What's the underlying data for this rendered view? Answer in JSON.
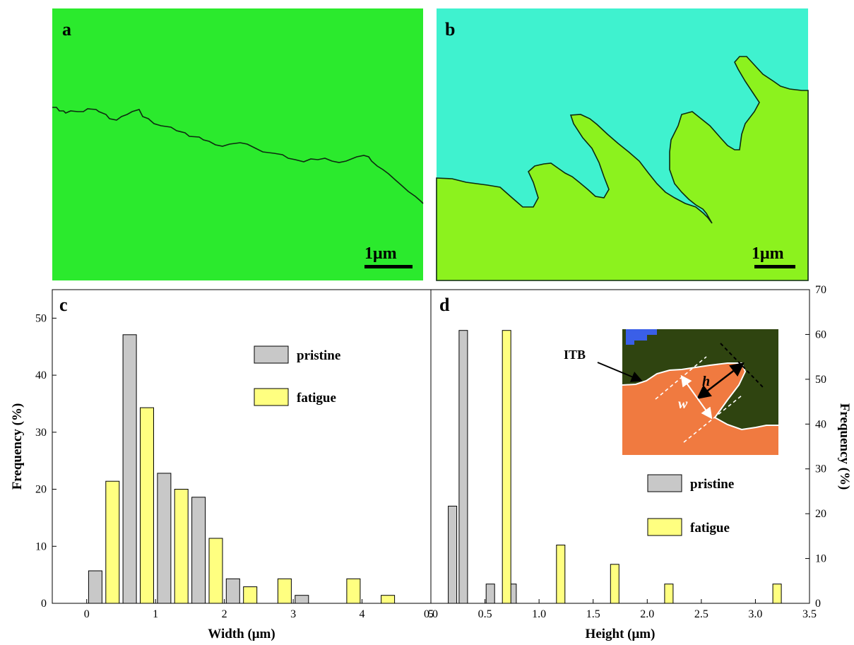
{
  "panels": {
    "a": {
      "letter": "a",
      "scale_label": "1μm",
      "background_color": "#2bea2d",
      "boundary_color": "#0d2a10"
    },
    "b": {
      "letter": "b",
      "scale_label": "1μm",
      "upper_color": "#3ff2cf",
      "lower_color": "#8cf21e",
      "boundary_color": "#0d2a10"
    },
    "c": {
      "letter": "c"
    },
    "d": {
      "letter": "d"
    }
  },
  "inset": {
    "itb_label": "ITB",
    "h_label": "h",
    "w_label": "w",
    "top_color": "#2f4410",
    "bottom_color": "#f07a40",
    "spot_color": "#3a5fe8"
  },
  "chart_data": [
    {
      "type": "bar",
      "panel": "c",
      "xlabel": "Width (μm)",
      "ylabel": "Frequency (%)",
      "xlim": [
        -0.5,
        5
      ],
      "ylim": [
        0,
        55
      ],
      "xticks": [
        0,
        1,
        2,
        3,
        4,
        5
      ],
      "yticks": [
        0,
        10,
        20,
        30,
        40,
        50
      ],
      "grid": false,
      "legend_position": "upper-middle",
      "series": [
        {
          "name": "pristine",
          "color": "#c8c8c8",
          "x": [
            0.125,
            0.625,
            1.125,
            1.625,
            2.125,
            3.125
          ],
          "values": [
            5.7,
            47.1,
            22.8,
            18.6,
            4.3,
            1.4
          ]
        },
        {
          "name": "fatigue",
          "color": "#ffff80",
          "x": [
            0.375,
            0.875,
            1.375,
            1.875,
            2.375,
            2.875,
            3.875,
            4.375
          ],
          "values": [
            21.4,
            34.3,
            20.0,
            11.4,
            2.9,
            4.3,
            4.3,
            1.4
          ]
        }
      ]
    },
    {
      "type": "bar",
      "panel": "d",
      "xlabel": "Height (μm)",
      "ylabel": "Frequency (%)",
      "xlim": [
        0,
        3.5
      ],
      "ylim": [
        0,
        70
      ],
      "xticks": [
        "0.0",
        "0.5",
        "1.0",
        "1.5",
        "2.0",
        "2.5",
        "3.0",
        "3.5"
      ],
      "yticks": [
        0,
        10,
        20,
        30,
        40,
        50,
        60,
        70
      ],
      "y_axis_side": "right",
      "grid": false,
      "legend_position": "lower-right",
      "series": [
        {
          "name": "pristine",
          "color": "#c8c8c8",
          "x": [
            0.2,
            0.3,
            0.55,
            0.75
          ],
          "values": [
            21.7,
            60.9,
            4.3,
            4.3
          ]
        },
        {
          "name": "fatigue",
          "color": "#ffff80",
          "x": [
            0.7,
            1.2,
            1.7,
            2.2,
            3.2
          ],
          "values": [
            60.9,
            13.0,
            8.7,
            4.3,
            4.3
          ]
        }
      ]
    }
  ]
}
